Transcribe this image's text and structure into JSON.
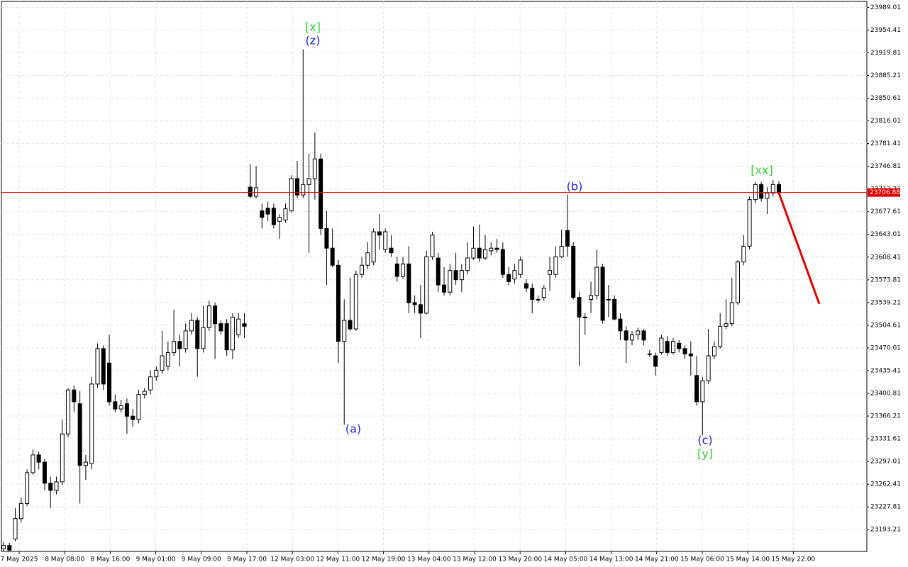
{
  "chart_data": {
    "type": "candlestick",
    "grid": true,
    "bull_color": "#ffffff",
    "bear_color": "#000000",
    "ylim": [
      23160,
      23998
    ],
    "yticks": [
      23989.01,
      23954.41,
      23919.81,
      23885.21,
      23850.61,
      23816.01,
      23781.41,
      23746.81,
      23712.21,
      23677.61,
      23643.01,
      23608.41,
      23573.81,
      23539.21,
      23504.61,
      23470.01,
      23435.41,
      23400.81,
      23366.21,
      23331.61,
      23297.01,
      23262.41,
      23227.81,
      23193.21
    ],
    "x_labels": [
      "7 May 2025",
      "8 May 08:00",
      "8 May 16:00",
      "9 May 01:00",
      "9 May 09:00",
      "9 May 17:00",
      "12 May 03:00",
      "12 May 11:00",
      "12 May 19:00",
      "13 May 04:00",
      "13 May 12:00",
      "13 May 20:00",
      "14 May 05:00",
      "14 May 13:00",
      "14 May 21:00",
      "15 May 06:00",
      "15 May 14:00",
      "15 May 22:00"
    ],
    "current_price": 23706.88,
    "current_price_color": "#e00000",
    "forecast_line": {
      "color": "#e00000",
      "values": [
        23706,
        23537
      ]
    },
    "annotations": [
      {
        "text": "[x]",
        "color": "#33cc33"
      },
      {
        "text": "(z)",
        "color": "#2222cc"
      },
      {
        "text": "(a)",
        "color": "#2222cc"
      },
      {
        "text": "(b)",
        "color": "#2222cc"
      },
      {
        "text": "(c)",
        "color": "#2222cc"
      },
      {
        "text": "[y]",
        "color": "#33cc33"
      },
      {
        "text": "[xx]",
        "color": "#33cc33"
      }
    ],
    "candles": {
      "open": [
        23164,
        23169,
        23179,
        23210,
        23233,
        23280,
        23307,
        23296,
        23264,
        23253,
        23266,
        23339,
        23406,
        23385,
        23291,
        23294,
        23415,
        23469,
        23447,
        23388,
        23377,
        23385,
        23366,
        23361,
        23399,
        23406,
        23426,
        23436,
        23442,
        23463,
        23480,
        23469,
        23496,
        23512,
        23469,
        23501,
        23534,
        23507,
        23507,
        23467,
        23490,
        23507,
        23715,
        23701,
        23679,
        23683,
        23683,
        23663,
        23665,
        23679,
        23728,
        23703,
        23719,
        23728,
        23758,
        23652,
        23622,
        23596,
        23480,
        23512,
        23499,
        23582,
        23596,
        23601,
        23647,
        23620,
        23622,
        23598,
        23579,
        23598,
        23539,
        23536,
        23523,
        23609,
        23607,
        23566,
        23555,
        23588,
        23574,
        23588,
        23607,
        23622,
        23607,
        23618,
        23622,
        23620,
        23582,
        23575,
        23582,
        23568,
        23561,
        23544,
        23547,
        23582,
        23582,
        23609,
        23649,
        23625,
        23547,
        23517,
        23544,
        23550,
        23593,
        23544,
        23544,
        23514,
        23496,
        23482,
        23490,
        23496,
        23461,
        23458,
        23463,
        23480,
        23463,
        23477,
        23469,
        23461,
        23428,
        23388,
        23420,
        23458,
        23472,
        23503,
        23507,
        23539,
        23601,
        23625,
        23696,
        23719,
        23698,
        23706,
        23719
      ],
      "high": [
        23175,
        23173,
        23226,
        23242,
        23285,
        23315,
        23312,
        23301,
        23274,
        23274,
        23361,
        23409,
        23413,
        23404,
        23307,
        23426,
        23477,
        23474,
        23490,
        23399,
        23391,
        23393,
        23377,
        23406,
        23409,
        23436,
        23442,
        23496,
        23480,
        23528,
        23490,
        23507,
        23523,
        23517,
        23534,
        23542,
        23539,
        23512,
        23514,
        23523,
        23523,
        23523,
        23750,
        23747,
        23690,
        23693,
        23690,
        23674,
        23690,
        23733,
        23755,
        23925,
        23766,
        23798,
        23766,
        23679,
        23652,
        23604,
        23544,
        23577,
        23588,
        23609,
        23631,
        23652,
        23674,
        23652,
        23642,
        23609,
        23609,
        23625,
        23550,
        23566,
        23618,
        23647,
        23615,
        23593,
        23598,
        23615,
        23598,
        23631,
        23655,
        23658,
        23642,
        23631,
        23636,
        23631,
        23593,
        23598,
        23609,
        23575,
        23568,
        23550,
        23566,
        23609,
        23625,
        23650,
        23704,
        23631,
        23555,
        23523,
        23571,
        23620,
        23598,
        23566,
        23550,
        23523,
        23503,
        23496,
        23501,
        23499,
        23467,
        23463,
        23490,
        23488,
        23485,
        23482,
        23474,
        23480,
        23458,
        23426,
        23499,
        23480,
        23523,
        23544,
        23577,
        23604,
        23642,
        23701,
        23723,
        23723,
        23715,
        23726,
        23724
      ],
      "low": [
        23160,
        23160,
        23175,
        23204,
        23229,
        23277,
        23285,
        23253,
        23226,
        23247,
        23261,
        23334,
        23372,
        23233,
        23269,
        23285,
        23409,
        23406,
        23382,
        23372,
        23372,
        23339,
        23350,
        23355,
        23393,
        23399,
        23420,
        23431,
        23436,
        23458,
        23442,
        23463,
        23490,
        23426,
        23463,
        23496,
        23453,
        23490,
        23458,
        23453,
        23485,
        23485,
        23698,
        23698,
        23652,
        23663,
        23652,
        23636,
        23661,
        23676,
        23698,
        23698,
        23615,
        23696,
        23642,
        23566,
        23593,
        23447,
        23353,
        23496,
        23496,
        23577,
        23590,
        23596,
        23620,
        23615,
        23609,
        23571,
        23575,
        23523,
        23523,
        23485,
        23521,
        23604,
        23555,
        23550,
        23550,
        23566,
        23555,
        23582,
        23604,
        23601,
        23604,
        23611,
        23615,
        23577,
        23566,
        23568,
        23577,
        23555,
        23523,
        23539,
        23542,
        23557,
        23577,
        23607,
        23609,
        23544,
        23442,
        23490,
        23523,
        23544,
        23507,
        23517,
        23512,
        23482,
        23447,
        23474,
        23482,
        23474,
        23456,
        23428,
        23460,
        23458,
        23460,
        23463,
        23453,
        23428,
        23382,
        23337,
        23415,
        23453,
        23469,
        23499,
        23503,
        23536,
        23596,
        23620,
        23690,
        23693,
        23674,
        23701,
        23703
      ],
      "close": [
        23169,
        23162,
        23210,
        23233,
        23280,
        23307,
        23296,
        23264,
        23253,
        23266,
        23339,
        23406,
        23388,
        23291,
        23296,
        23415,
        23469,
        23415,
        23388,
        23377,
        23382,
        23366,
        23361,
        23399,
        23404,
        23426,
        23436,
        23458,
        23463,
        23480,
        23469,
        23496,
        23512,
        23469,
        23501,
        23534,
        23507,
        23496,
        23467,
        23517,
        23514,
        23503,
        23701,
        23714,
        23669,
        23674,
        23658,
        23669,
        23682,
        23728,
        23703,
        23719,
        23728,
        23758,
        23652,
        23622,
        23596,
        23480,
        23512,
        23499,
        23582,
        23596,
        23615,
        23647,
        23642,
        23647,
        23615,
        23579,
        23598,
        23539,
        23536,
        23523,
        23609,
        23642,
        23566,
        23555,
        23588,
        23574,
        23588,
        23607,
        23622,
        23607,
        23620,
        23622,
        23620,
        23582,
        23571,
        23588,
        23604,
        23561,
        23544,
        23544,
        23561,
        23588,
        23609,
        23625,
        23625,
        23547,
        23517,
        23517,
        23550,
        23593,
        23512,
        23544,
        23514,
        23496,
        23482,
        23490,
        23496,
        23482,
        23461,
        23442,
        23485,
        23463,
        23480,
        23469,
        23461,
        23458,
        23388,
        23420,
        23458,
        23472,
        23503,
        23507,
        23539,
        23601,
        23625,
        23696,
        23719,
        23698,
        23706,
        23719,
        23706
      ]
    }
  }
}
